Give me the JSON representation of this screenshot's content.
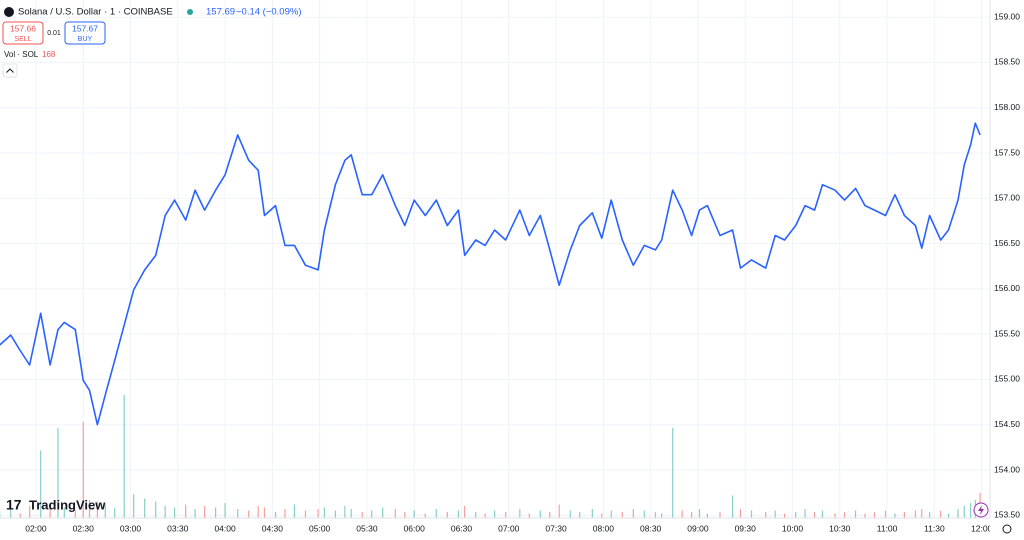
{
  "chart_data": {
    "type": "line",
    "title": "Solana / U.S. Dollar · 1 · COINBASE",
    "last_price": 157.69,
    "change_label": "−0.14 (−0.09%)",
    "sell": {
      "price": 157.66,
      "label": "SELL"
    },
    "spread": 0.01,
    "buy": {
      "price": 157.67,
      "label": "BUY"
    },
    "volume_label": "Vol · SOL",
    "volume_last": 168,
    "brand": "TradingView",
    "color": "#2962ff",
    "grid": true,
    "xlim": [
      97.2,
      725.3
    ],
    "ylim": [
      153.47,
      159.19
    ],
    "xticks": [
      {
        "value": 120,
        "label": "02:00"
      },
      {
        "value": 150,
        "label": "02:30"
      },
      {
        "value": 180,
        "label": "03:00"
      },
      {
        "value": 210,
        "label": "03:30"
      },
      {
        "value": 240,
        "label": "04:00"
      },
      {
        "value": 270,
        "label": "04:30"
      },
      {
        "value": 300,
        "label": "05:00"
      },
      {
        "value": 330,
        "label": "05:30"
      },
      {
        "value": 360,
        "label": "06:00"
      },
      {
        "value": 390,
        "label": "06:30"
      },
      {
        "value": 420,
        "label": "07:00"
      },
      {
        "value": 450,
        "label": "07:30"
      },
      {
        "value": 480,
        "label": "08:00"
      },
      {
        "value": 510,
        "label": "08:30"
      },
      {
        "value": 540,
        "label": "09:00"
      },
      {
        "value": 570,
        "label": "09:30"
      },
      {
        "value": 600,
        "label": "10:00"
      },
      {
        "value": 630,
        "label": "10:30"
      },
      {
        "value": 660,
        "label": "11:00"
      },
      {
        "value": 690,
        "label": "11:30"
      },
      {
        "value": 720,
        "label": "12:00"
      }
    ],
    "yticks": [
      {
        "value": 159,
        "label": "159.00"
      },
      {
        "value": 158.5,
        "label": "158.50"
      },
      {
        "value": 158,
        "label": "158.00"
      },
      {
        "value": 157.5,
        "label": "157.50"
      },
      {
        "value": 157,
        "label": "157.00"
      },
      {
        "value": 156.5,
        "label": "156.50"
      },
      {
        "value": 156,
        "label": "156.00"
      },
      {
        "value": 155.5,
        "label": "155.50"
      },
      {
        "value": 155,
        "label": "155.00"
      },
      {
        "value": 154.5,
        "label": "154.50"
      },
      {
        "value": 154,
        "label": "154.00"
      },
      {
        "value": 153.5,
        "label": "153.50"
      }
    ],
    "x": [
      97,
      104,
      110,
      116,
      123,
      129,
      134,
      138,
      145,
      150,
      154,
      159,
      164,
      170,
      176,
      182,
      189,
      196,
      202,
      208,
      215,
      221,
      227,
      234,
      240,
      248,
      255,
      261,
      265,
      272,
      278,
      284,
      291,
      299,
      303,
      310,
      316,
      320,
      327,
      333,
      340,
      348,
      354,
      360,
      367,
      374,
      381,
      388,
      392,
      399,
      405,
      411,
      418,
      427,
      433,
      440,
      446,
      452,
      459,
      465,
      473,
      479,
      485,
      492,
      499,
      506,
      513,
      517,
      524,
      530,
      536,
      541,
      546,
      554,
      562,
      567,
      574,
      583,
      589,
      595,
      602,
      608,
      614,
      619,
      627,
      633,
      640,
      646,
      652,
      659,
      665,
      671,
      678,
      682,
      687,
      694,
      699,
      705,
      709,
      713,
      716,
      719
    ],
    "series": [
      {
        "color": "#2962ff",
        "values": [
          155.38,
          155.49,
          155.32,
          155.16,
          155.73,
          155.16,
          155.55,
          155.63,
          155.55,
          154.99,
          154.88,
          154.5,
          154.83,
          155.21,
          155.6,
          155.99,
          156.21,
          156.37,
          156.81,
          156.98,
          156.76,
          157.09,
          156.87,
          157.09,
          157.26,
          157.7,
          157.42,
          157.31,
          156.81,
          156.92,
          156.48,
          156.48,
          156.26,
          156.21,
          156.65,
          157.15,
          157.42,
          157.48,
          157.04,
          157.04,
          157.26,
          156.92,
          156.7,
          156.98,
          156.81,
          156.98,
          156.7,
          156.87,
          156.37,
          156.54,
          156.48,
          156.65,
          156.54,
          156.87,
          156.59,
          156.81,
          156.43,
          156.04,
          156.43,
          156.7,
          156.84,
          156.56,
          156.98,
          156.54,
          156.26,
          156.48,
          156.43,
          156.54,
          157.09,
          156.87,
          156.59,
          156.87,
          156.92,
          156.59,
          156.65,
          156.23,
          156.32,
          156.23,
          156.59,
          156.54,
          156.7,
          156.92,
          156.87,
          157.15,
          157.09,
          156.98,
          157.11,
          156.92,
          156.87,
          156.81,
          157.04,
          156.81,
          156.7,
          156.45,
          156.81,
          156.54,
          156.65,
          156.98,
          157.37,
          157.59,
          157.83,
          157.7
        ]
      }
    ],
    "volume": {
      "up_color": "#26a69a",
      "down_color": "#ef5350",
      "values": [
        40,
        60,
        30,
        80,
        450,
        90,
        600,
        70,
        50,
        640,
        120,
        110,
        90,
        70,
        820,
        160,
        130,
        110,
        80,
        70,
        90,
        60,
        80,
        70,
        100,
        60,
        50,
        80,
        70,
        40,
        60,
        90,
        50,
        60,
        70,
        50,
        80,
        60,
        40,
        50,
        70,
        60,
        40,
        50,
        30,
        60,
        40,
        50,
        80,
        40,
        30,
        50,
        40,
        60,
        30,
        50,
        40,
        90,
        50,
        40,
        60,
        30,
        50,
        40,
        60,
        50,
        40,
        30,
        600,
        50,
        40,
        60,
        30,
        40,
        150,
        60,
        50,
        40,
        50,
        30,
        40,
        60,
        40,
        50,
        30,
        40,
        50,
        30,
        40,
        50,
        30,
        40,
        50,
        60,
        40,
        50,
        30,
        60,
        80,
        100,
        120,
        168
      ]
    }
  }
}
